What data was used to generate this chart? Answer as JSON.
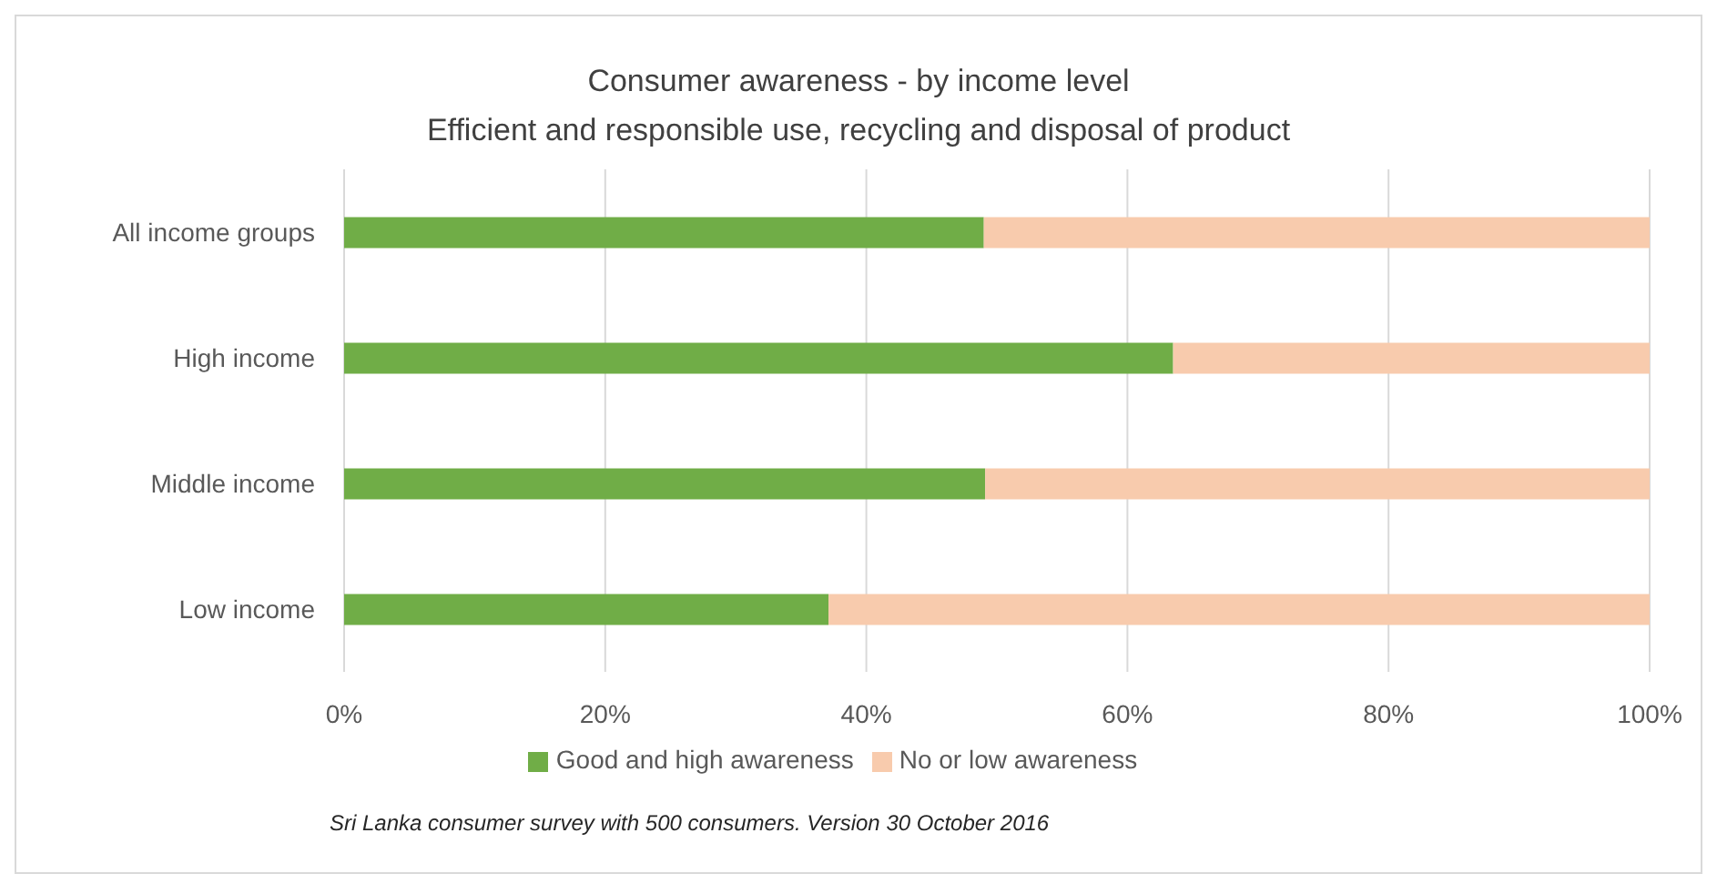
{
  "chart_data": {
    "type": "bar",
    "orientation": "horizontal",
    "stacked": true,
    "title": "Consumer awareness  - by income level",
    "subtitle": "Efficient and responsible use, recycling and disposal of product",
    "categories": [
      "All income groups",
      "High income",
      "Middle income",
      "Low income"
    ],
    "series": [
      {
        "name": "Good and high awareness",
        "color": "#70ad47",
        "values": [
          49,
          63.5,
          49.1,
          37.1
        ]
      },
      {
        "name": "No or low awareness",
        "color": "#f8cbad",
        "values": [
          51,
          36.5,
          50.9,
          62.9
        ]
      }
    ],
    "xlim": [
      0,
      100
    ],
    "xticks": [
      {
        "value": 0,
        "label": "0%"
      },
      {
        "value": 20,
        "label": "20%"
      },
      {
        "value": 40,
        "label": "40%"
      },
      {
        "value": 60,
        "label": "60%"
      },
      {
        "value": 80,
        "label": "80%"
      },
      {
        "value": 100,
        "label": "100%"
      }
    ],
    "grid": "x",
    "legend": "bottom",
    "annotations": [
      "Sri Lanka consumer survey with 500 consumers. Version  30 October 2016"
    ]
  }
}
